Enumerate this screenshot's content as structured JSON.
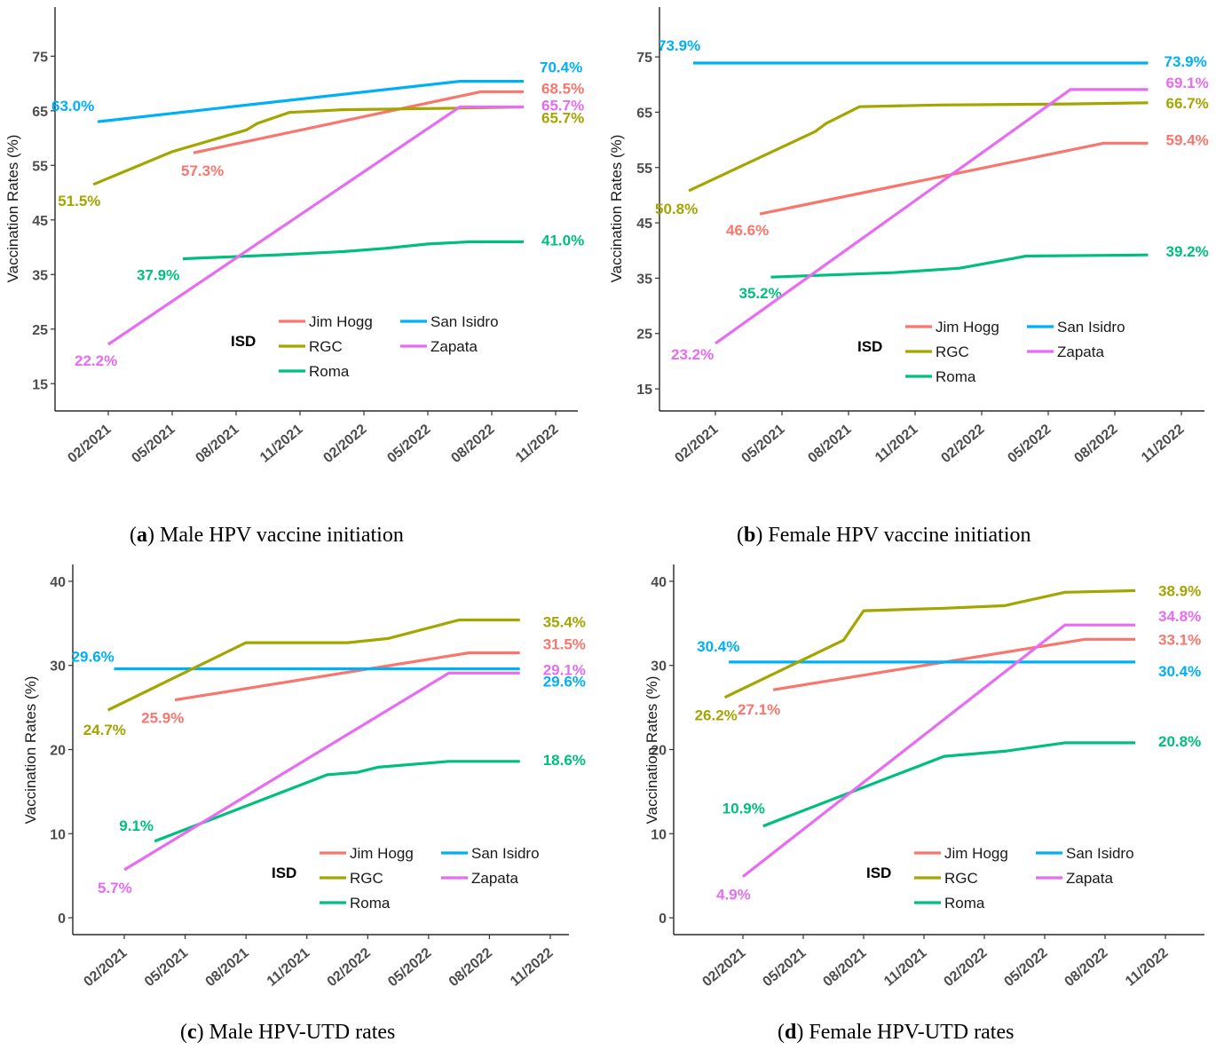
{
  "legend": {
    "title": "ISD",
    "entries": [
      {
        "name": "Jim Hogg",
        "color": "#F8766D"
      },
      {
        "name": "San Isidro",
        "color": "#00B0F6"
      },
      {
        "name": "RGC",
        "color": "#A3A500"
      },
      {
        "name": "Zapata",
        "color": "#E76BF3"
      },
      {
        "name": "Roma",
        "color": "#00BF7D"
      }
    ]
  },
  "chart_data": [
    {
      "type": "line",
      "panel_letter": "a",
      "caption": "Male HPV vaccine initiation",
      "ylabel": "Vaccination Rates (%)",
      "xlabel": "",
      "ylim": [
        10,
        84
      ],
      "yticks": [
        15,
        25,
        35,
        45,
        55,
        65,
        75
      ],
      "xticks": [
        "02/2021",
        "05/2021",
        "08/2021",
        "11/2021",
        "02/2022",
        "05/2022",
        "08/2022",
        "11/2022"
      ],
      "grid": false,
      "legend_position": "bottom-right-inside",
      "series": [
        {
          "name": "Jim Hogg",
          "color": "#F8766D",
          "points": [
            [
              4.0,
              57.3
            ],
            [
              17.5,
              68.5
            ],
            [
              19.5,
              68.5
            ]
          ],
          "start_label": "57.3%",
          "end_label": "68.5%"
        },
        {
          "name": "San Isidro",
          "color": "#00B0F6",
          "points": [
            [
              -0.5,
              63.0
            ],
            [
              16.5,
              70.4
            ],
            [
              19.5,
              70.4
            ]
          ],
          "start_label": "63.0%",
          "end_label": "70.4%"
        },
        {
          "name": "RGC",
          "color": "#A3A500",
          "points": [
            [
              -0.7,
              51.5
            ],
            [
              3.0,
              57.5
            ],
            [
              6.5,
              61.5
            ],
            [
              7.0,
              62.7
            ],
            [
              8.5,
              64.7
            ],
            [
              11.0,
              65.2
            ],
            [
              16.5,
              65.5
            ],
            [
              19.5,
              65.7
            ]
          ],
          "start_label": "51.5%",
          "end_label": "65.7%"
        },
        {
          "name": "Roma",
          "color": "#00BF7D",
          "points": [
            [
              3.5,
              37.9
            ],
            [
              8.0,
              38.6
            ],
            [
              11.0,
              39.2
            ],
            [
              13.0,
              39.8
            ],
            [
              15.0,
              40.6
            ],
            [
              17.0,
              41.0
            ],
            [
              19.5,
              41.0
            ]
          ],
          "start_label": "37.9%",
          "end_label": "41.0%"
        },
        {
          "name": "Zapata",
          "color": "#E76BF3",
          "points": [
            [
              0.0,
              22.2
            ],
            [
              16.5,
              65.7
            ],
            [
              19.5,
              65.7
            ]
          ],
          "start_label": "22.2%",
          "end_label": "65.7%"
        }
      ]
    },
    {
      "type": "line",
      "panel_letter": "b",
      "caption": "Female HPV vaccine initiation",
      "ylabel": "Vaccination Rates (%)",
      "xlabel": "",
      "ylim": [
        11,
        84
      ],
      "yticks": [
        15,
        25,
        35,
        45,
        55,
        65,
        75
      ],
      "xticks": [
        "02/2021",
        "05/2021",
        "08/2021",
        "11/2021",
        "02/2022",
        "05/2022",
        "08/2022",
        "11/2022"
      ],
      "grid": false,
      "legend_position": "bottom-right-inside",
      "series": [
        {
          "name": "Jim Hogg",
          "color": "#F8766D",
          "points": [
            [
              2.0,
              46.6
            ],
            [
              17.5,
              59.4
            ],
            [
              19.5,
              59.4
            ]
          ],
          "start_label": "46.6%",
          "end_label": "59.4%"
        },
        {
          "name": "San Isidro",
          "color": "#00B0F6",
          "points": [
            [
              -1.0,
              73.9
            ],
            [
              19.5,
              73.9
            ]
          ],
          "start_label": "73.9%",
          "end_label": "73.9%"
        },
        {
          "name": "RGC",
          "color": "#A3A500",
          "points": [
            [
              -1.2,
              50.8
            ],
            [
              4.5,
              61.5
            ],
            [
              5.0,
              63.0
            ],
            [
              6.5,
              66.0
            ],
            [
              10.0,
              66.3
            ],
            [
              16.0,
              66.5
            ],
            [
              19.5,
              66.7
            ]
          ],
          "start_label": "50.8%",
          "end_label": "66.7%"
        },
        {
          "name": "Roma",
          "color": "#00BF7D",
          "points": [
            [
              2.5,
              35.2
            ],
            [
              8.0,
              36.0
            ],
            [
              11.0,
              36.8
            ],
            [
              14.0,
              39.0
            ],
            [
              19.5,
              39.2
            ]
          ],
          "start_label": "35.2%",
          "end_label": "39.2%"
        },
        {
          "name": "Zapata",
          "color": "#E76BF3",
          "points": [
            [
              0.0,
              23.2
            ],
            [
              16.0,
              69.1
            ],
            [
              19.5,
              69.1
            ]
          ],
          "start_label": "23.2%",
          "end_label": "69.1%"
        }
      ]
    },
    {
      "type": "line",
      "panel_letter": "c",
      "caption": "Male HPV-UTD rates",
      "ylabel": "Vaccination Rates (%)",
      "xlabel": "",
      "ylim": [
        -2,
        42
      ],
      "yticks": [
        0,
        10,
        20,
        30,
        40
      ],
      "xticks": [
        "02/2021",
        "05/2021",
        "08/2021",
        "11/2021",
        "02/2022",
        "05/2022",
        "08/2022",
        "11/2022"
      ],
      "grid": false,
      "legend_position": "bottom-right-inside",
      "series": [
        {
          "name": "Jim Hogg",
          "color": "#F8766D",
          "points": [
            [
              2.5,
              25.9
            ],
            [
              17.0,
              31.5
            ],
            [
              19.5,
              31.5
            ]
          ],
          "start_label": "25.9%",
          "end_label": "31.5%"
        },
        {
          "name": "San Isidro",
          "color": "#00B0F6",
          "points": [
            [
              -0.5,
              29.6
            ],
            [
              19.5,
              29.6
            ]
          ],
          "start_label": "29.6%",
          "end_label": "29.6%"
        },
        {
          "name": "RGC",
          "color": "#A3A500",
          "points": [
            [
              -0.8,
              24.7
            ],
            [
              6.0,
              32.7
            ],
            [
              11.0,
              32.7
            ],
            [
              13.0,
              33.2
            ],
            [
              16.5,
              35.4
            ],
            [
              19.5,
              35.4
            ]
          ],
          "start_label": "24.7%",
          "end_label": "35.4%"
        },
        {
          "name": "Roma",
          "color": "#00BF7D",
          "points": [
            [
              1.5,
              9.1
            ],
            [
              10.0,
              17.0
            ],
            [
              11.5,
              17.3
            ],
            [
              12.5,
              17.9
            ],
            [
              16.0,
              18.6
            ],
            [
              19.5,
              18.6
            ]
          ],
          "start_label": "9.1%",
          "end_label": "18.6%"
        },
        {
          "name": "Zapata",
          "color": "#E76BF3",
          "points": [
            [
              0.0,
              5.7
            ],
            [
              16.0,
              29.1
            ],
            [
              19.5,
              29.1
            ]
          ],
          "start_label": "5.7%",
          "end_label": "29.1%"
        }
      ]
    },
    {
      "type": "line",
      "panel_letter": "d",
      "caption": "Female HPV-UTD rates",
      "ylabel": "Vaccination Rates (%)",
      "xlabel": "",
      "ylim": [
        -2,
        42
      ],
      "yticks": [
        0,
        10,
        20,
        30,
        40
      ],
      "xticks": [
        "02/2021",
        "05/2021",
        "08/2021",
        "11/2021",
        "02/2022",
        "05/2022",
        "08/2022",
        "11/2022"
      ],
      "grid": false,
      "legend_position": "bottom-right-inside",
      "series": [
        {
          "name": "Jim Hogg",
          "color": "#F8766D",
          "points": [
            [
              1.5,
              27.1
            ],
            [
              17.0,
              33.1
            ],
            [
              19.5,
              33.1
            ]
          ],
          "start_label": "27.1%",
          "end_label": "33.1%"
        },
        {
          "name": "San Isidro",
          "color": "#00B0F6",
          "points": [
            [
              -0.7,
              30.4
            ],
            [
              19.5,
              30.4
            ]
          ],
          "start_label": "30.4%",
          "end_label": "30.4%"
        },
        {
          "name": "RGC",
          "color": "#A3A500",
          "points": [
            [
              -0.9,
              26.2
            ],
            [
              5.0,
              33.0
            ],
            [
              6.0,
              36.5
            ],
            [
              10.0,
              36.8
            ],
            [
              13.0,
              37.1
            ],
            [
              16.0,
              38.7
            ],
            [
              19.5,
              38.9
            ]
          ],
          "start_label": "26.2%",
          "end_label": "38.9%"
        },
        {
          "name": "Roma",
          "color": "#00BF7D",
          "points": [
            [
              1.0,
              10.9
            ],
            [
              10.0,
              19.2
            ],
            [
              13.0,
              19.8
            ],
            [
              16.0,
              20.8
            ],
            [
              19.5,
              20.8
            ]
          ],
          "start_label": "10.9%",
          "end_label": "20.8%"
        },
        {
          "name": "Zapata",
          "color": "#E76BF3",
          "points": [
            [
              0.0,
              4.9
            ],
            [
              16.0,
              34.8
            ],
            [
              19.5,
              34.8
            ]
          ],
          "start_label": "4.9%",
          "end_label": "34.8%"
        }
      ]
    }
  ]
}
